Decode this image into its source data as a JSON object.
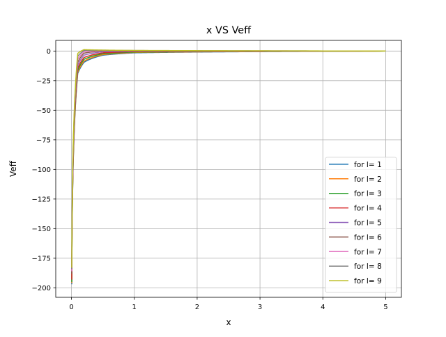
{
  "chart_data": {
    "type": "line",
    "title": "x VS Veff",
    "xlabel": "x",
    "ylabel": "Veff",
    "xlim": [
      -0.25,
      5.25
    ],
    "ylim": [
      -208,
      9
    ],
    "xticks": [
      0,
      1,
      2,
      3,
      4,
      5
    ],
    "xtick_labels": [
      "0",
      "1",
      "2",
      "3",
      "4",
      "5"
    ],
    "yticks": [
      0,
      -25,
      -50,
      -75,
      -100,
      -125,
      -150,
      -175,
      -200
    ],
    "ytick_labels": [
      "0",
      "−25",
      "−50",
      "−75",
      "−100",
      "−125",
      "−150",
      "−175",
      "−200"
    ],
    "grid": true,
    "legend_position": "lower-right",
    "x_range": [
      0.005,
      5
    ],
    "series": [
      {
        "name": "for l= 1",
        "color": "#1f77b4",
        "y_at_x_min": -197,
        "y_at_x_0_1": -19,
        "y_at_x_0_2": -9.5,
        "y_at_x_0_5": -3.5,
        "y_at_x_1": -1.5,
        "y_at_x_5": 0
      },
      {
        "name": "for l= 2",
        "color": "#ff7f0e",
        "y_at_x_min": -196,
        "y_at_x_0_1": -18,
        "y_at_x_0_2": -8.5,
        "y_at_x_0_5": -3,
        "y_at_x_1": -1.2,
        "y_at_x_5": 0
      },
      {
        "name": "for l= 3",
        "color": "#2ca02c",
        "y_at_x_min": -195,
        "y_at_x_0_1": -16.5,
        "y_at_x_0_2": -7,
        "y_at_x_0_5": -2.3,
        "y_at_x_1": -0.9,
        "y_at_x_5": 0
      },
      {
        "name": "for l= 4",
        "color": "#d62728",
        "y_at_x_min": -193,
        "y_at_x_0_1": -14.5,
        "y_at_x_0_2": -5.5,
        "y_at_x_0_5": -1.5,
        "y_at_x_1": -0.5,
        "y_at_x_5": 0
      },
      {
        "name": "for l= 5",
        "color": "#9467bd",
        "y_at_x_min": -185,
        "y_at_x_0_1": -12,
        "y_at_x_0_2": -3.5,
        "y_at_x_0_5": -0.6,
        "y_at_x_1": -0.1,
        "y_at_x_5": 0
      },
      {
        "name": "for l= 6",
        "color": "#8c564b",
        "y_at_x_min": -188,
        "y_at_x_0_1": -9.5,
        "y_at_x_0_2": -1.8,
        "y_at_x_0_5": 0.1,
        "y_at_x_1": 0.15,
        "y_at_x_5": 0
      },
      {
        "name": "for l= 7",
        "color": "#e377c2",
        "y_at_x_min": -186,
        "y_at_x_0_1": -7,
        "y_at_x_0_2": -0.5,
        "y_at_x_0_5": 0.5,
        "y_at_x_1": 0.3,
        "y_at_x_5": 0
      },
      {
        "name": "for l= 8",
        "color": "#7f7f7f",
        "y_at_x_min": -184,
        "y_at_x_0_1": -4.5,
        "y_at_x_0_2": 0.5,
        "y_at_x_0_5": 0.7,
        "y_at_x_1": 0.4,
        "y_at_x_5": 0
      },
      {
        "name": "for l= 9",
        "color": "#bcbd22",
        "y_at_x_min": -183,
        "y_at_x_0_1": -2,
        "y_at_x_0_2": 1.2,
        "y_at_x_0_5": 0.8,
        "y_at_x_1": 0.5,
        "y_at_x_5": 0
      }
    ]
  }
}
